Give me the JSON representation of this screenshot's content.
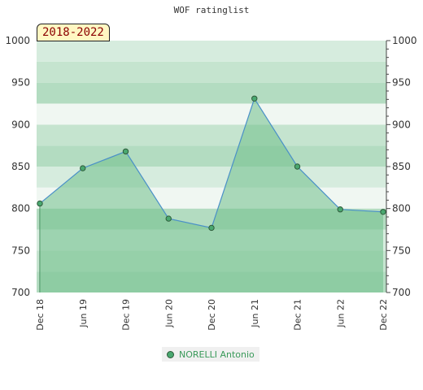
{
  "title": "WOF ratinglist",
  "period_label": "2018-2022",
  "chart_data": {
    "type": "area",
    "title": "WOF ratinglist",
    "categories": [
      "Dec 18",
      "Jun 19",
      "Dec 19",
      "Jun 20",
      "Dec 20",
      "Jun 21",
      "Dec 21",
      "Jun 22",
      "Dec 22"
    ],
    "series": [
      {
        "name": "NORELLI Antonio",
        "values": [
          806,
          848,
          868,
          788,
          777,
          931,
          850,
          799,
          796
        ]
      }
    ],
    "ylim": [
      700,
      1000
    ],
    "yticks": [
      700,
      750,
      800,
      850,
      900,
      950,
      1000
    ],
    "grid": true,
    "legend": "bottom-center",
    "colors": {
      "line": "#4a90c8",
      "fill": "#6fc08a",
      "marker": "#4aa870",
      "band_dark": "#b3dcc1",
      "band_light": "#f0f7f2"
    }
  }
}
